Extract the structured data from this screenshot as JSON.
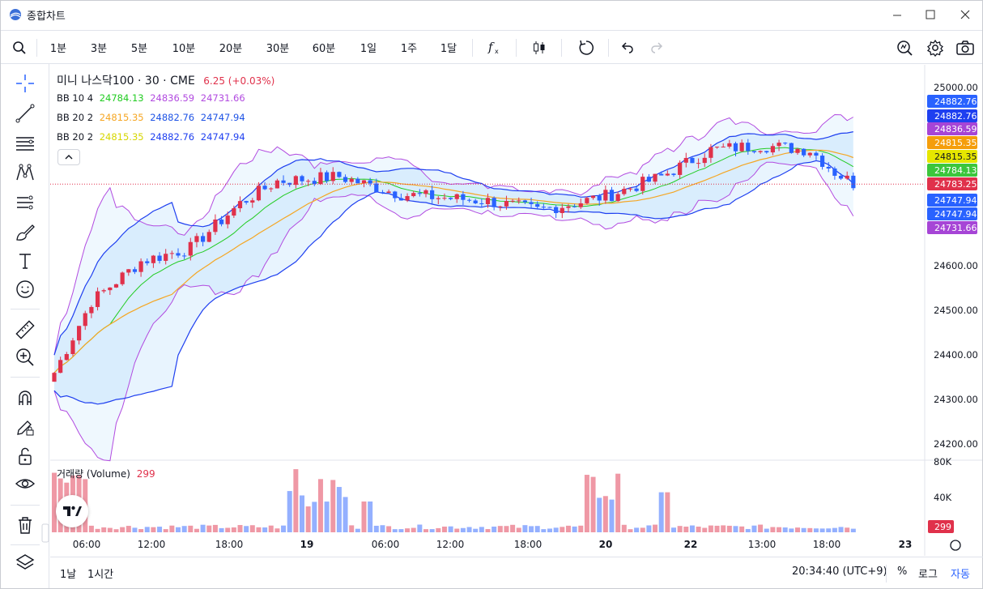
{
  "window": {
    "title": "종합차트"
  },
  "toolbar": {
    "intervals": [
      "1분",
      "3분",
      "5분",
      "10분",
      "20분",
      "30분",
      "60분",
      "1일",
      "1주",
      "1달"
    ]
  },
  "chart": {
    "symbol_title": "미니 나스닥100 · 30 · CME",
    "change": "6.25 (+0.03%)",
    "legends": [
      {
        "label": "BB 10 4",
        "v1": "24784.13",
        "v2": "24836.59",
        "v3": "24731.66",
        "c1": "#22cc22",
        "c2": "#b24be0",
        "c3": "#b24be0"
      },
      {
        "label": "BB 20 2",
        "v1": "24815.35",
        "v2": "24882.76",
        "v3": "24747.94",
        "c1": "#f5a623",
        "c2": "#1e53e5",
        "c3": "#1e53e5"
      },
      {
        "label": "BB 20 2",
        "v1": "24815.35",
        "v2": "24882.76",
        "v3": "24747.94",
        "c1": "#e6e600",
        "c2": "#1e3ff0",
        "c3": "#1e3ff0"
      }
    ],
    "price_axis": [
      "25000.00",
      "24600.00",
      "24500.00",
      "24400.00",
      "24300.00",
      "24200.00"
    ],
    "price_tags": [
      {
        "value": "24882.76",
        "color": "#2962ff"
      },
      {
        "value": "24882.76",
        "color": "#1e3ff0"
      },
      {
        "value": "24836.59",
        "color": "#a645d6"
      },
      {
        "value": "24815.35",
        "color": "#f59e0b"
      },
      {
        "value": "24815.35",
        "color": "#e6e600"
      },
      {
        "value": "24784.13",
        "color": "#3cc63c"
      },
      {
        "value": "24783.25",
        "color": "#e0314b"
      },
      {
        "value": "24747.94",
        "color": "#2962ff"
      },
      {
        "value": "24747.94",
        "color": "#2962ff"
      },
      {
        "value": "24731.66",
        "color": "#a645d6"
      }
    ],
    "volume": {
      "label": "거래량 (Volume)",
      "value": "299",
      "axis": [
        "80K",
        "40K"
      ],
      "tag": "299"
    },
    "time_axis": [
      "06:00",
      "12:00",
      "18:00",
      "19",
      "06:00",
      "12:00",
      "18:00",
      "20",
      "22",
      "13:00",
      "18:00",
      "23"
    ]
  },
  "bottombar": {
    "ranges": [
      "1날",
      "1시간"
    ],
    "clock": "20:34:40 (UTC+9)",
    "percent": "%",
    "log": "로그",
    "auto": "자동"
  },
  "colors": {
    "up": "#e0314b",
    "down": "#2962ff",
    "accent": "#2962ff"
  }
}
